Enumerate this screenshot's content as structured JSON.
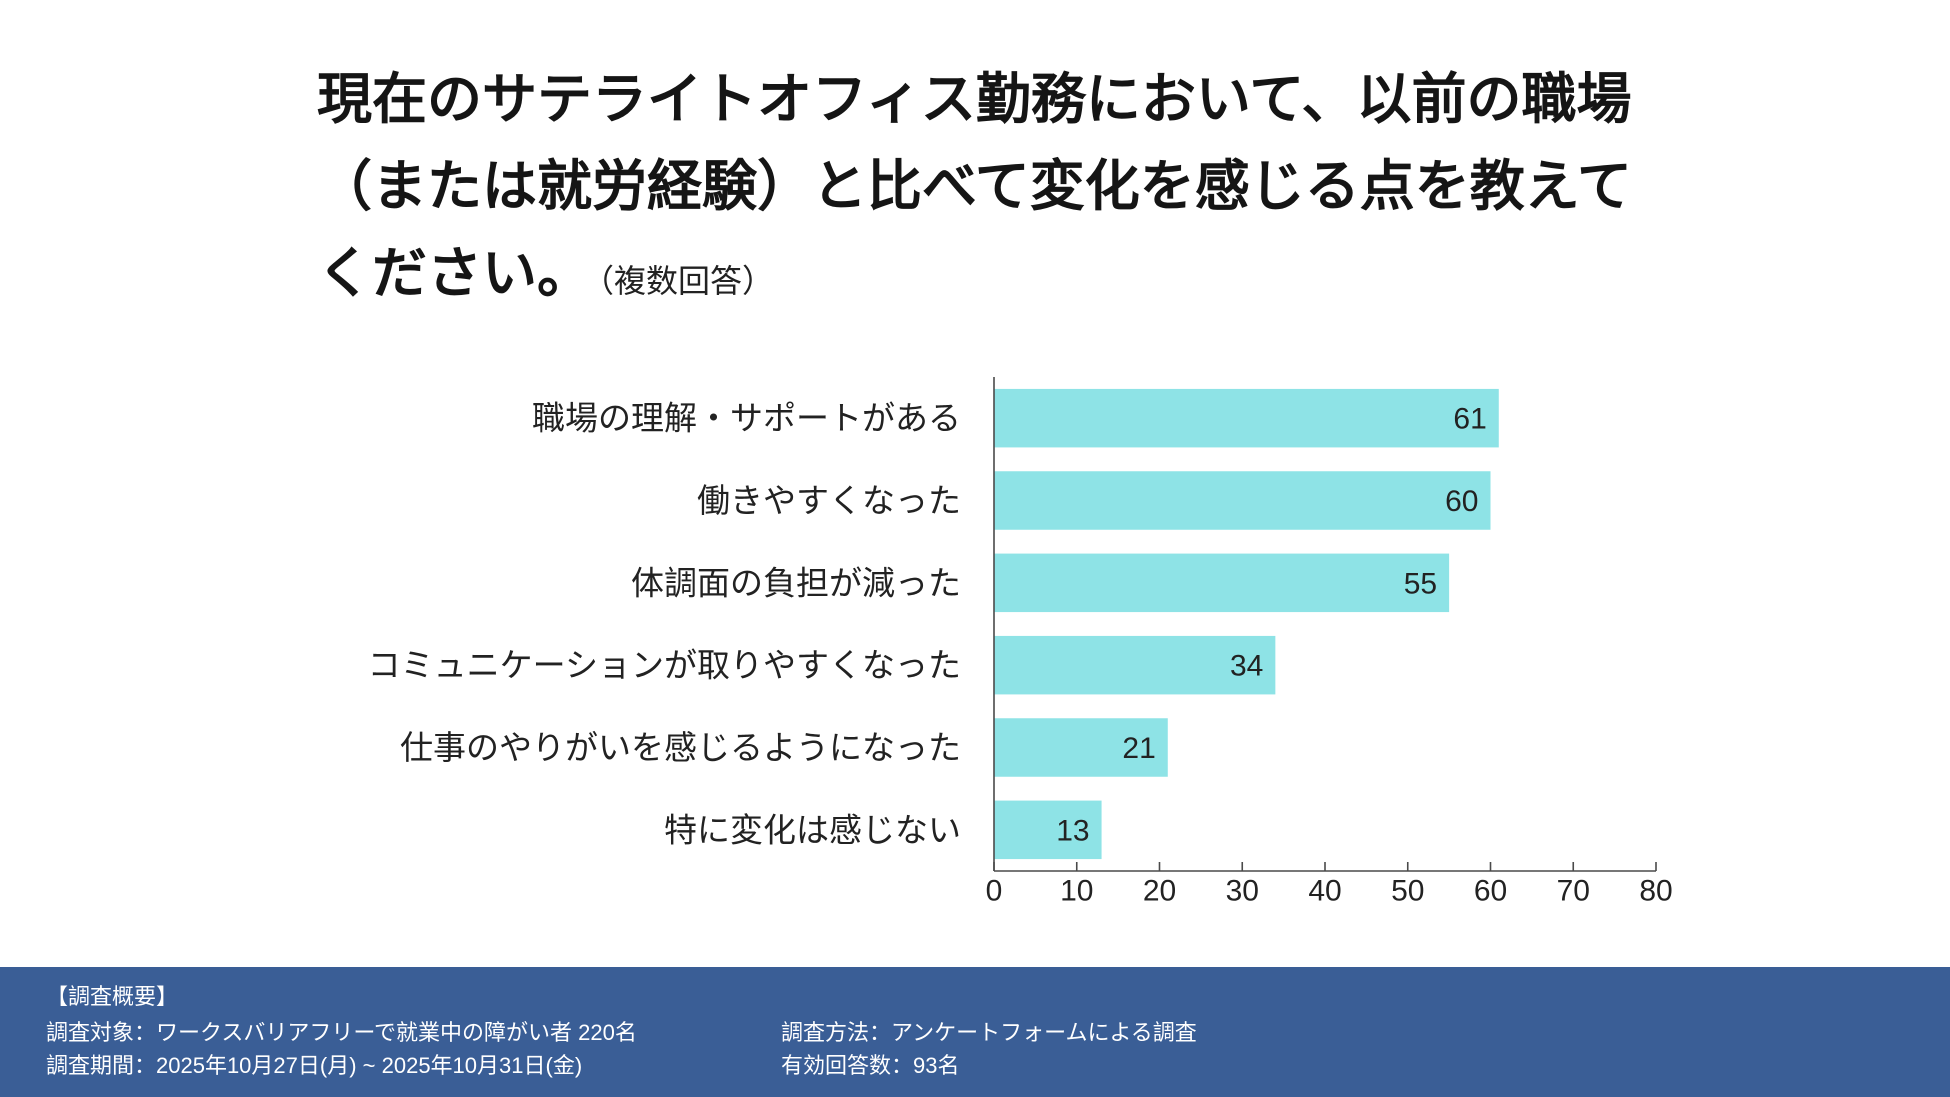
{
  "chart_data": {
    "type": "bar",
    "orientation": "horizontal",
    "title_lines": [
      "現在のサテライトオフィス勤務において、以前の職場",
      "（または就労経験）と比べて変化を感じる点を教えて",
      "ください。"
    ],
    "subtitle": "（複数回答）",
    "categories": [
      "職場の理解・サポートがある",
      "働きやすくなった",
      "体調面の負担が減った",
      "コミュニケーションが取りやすくなった",
      "仕事のやりがいを感じるようになった",
      "特に変化は感じない"
    ],
    "values": [
      61,
      60,
      55,
      34,
      21,
      13
    ],
    "xlim": [
      0,
      80
    ],
    "x_ticks": [
      0,
      10,
      20,
      30,
      40,
      50,
      60,
      70,
      80
    ],
    "data_labels": "inside-end",
    "grid": false,
    "legend": "none",
    "bar_color": "#8ee3e6"
  },
  "footer": {
    "heading": "【調査概要】",
    "target": "調査対象：ワークスバリアフリーで就業中の障がい者 220名",
    "period": "調査期間：2025年10月27日(月) ~ 2025年10月31日(金)",
    "method": "調査方法：アンケートフォームによる調査",
    "responses": "有効回答数：93名",
    "background": "#3a5e96"
  }
}
